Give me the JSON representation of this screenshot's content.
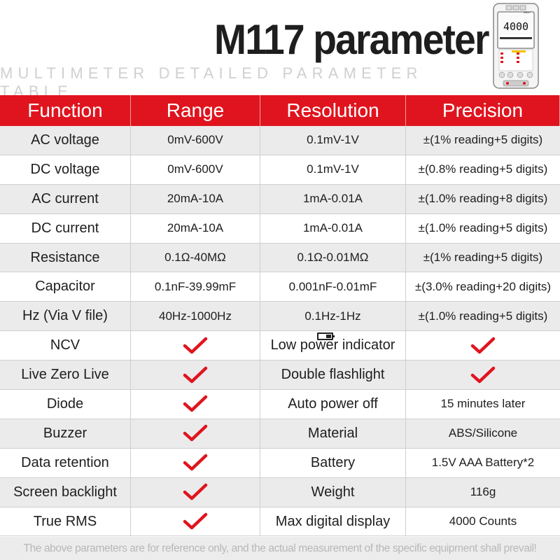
{
  "title": "M117 parameter",
  "subtitle": "MULTIMETER DETAILED PARAMETER TABLE",
  "device_image": {
    "display": "4000",
    "model": "M117"
  },
  "colors": {
    "accent": "#e0141e",
    "stripe": "#ebebeb"
  },
  "headers": [
    "Function",
    "Range",
    "Resolution",
    "Precision"
  ],
  "rows": [
    {
      "function": "AC voltage",
      "range": "0mV-600V",
      "resolution": "0.1mV-1V",
      "precision": "±(1% reading+5 digits)"
    },
    {
      "function": "DC voltage",
      "range": "0mV-600V",
      "resolution": "0.1mV-1V",
      "precision": "±(0.8% reading+5 digits)"
    },
    {
      "function": "AC current",
      "range": "20mA-10A",
      "resolution": "1mA-0.01A",
      "precision": "±(1.0% reading+8 digits)"
    },
    {
      "function": "DC current",
      "range": "20mA-10A",
      "resolution": "1mA-0.01A",
      "precision": "±(1.0% reading+5 digits)"
    },
    {
      "function": "Resistance",
      "range": "0.1Ω-40MΩ",
      "resolution": "0.1Ω-0.01MΩ",
      "precision": "±(1% reading+5 digits)"
    },
    {
      "function": "Capacitor",
      "range": "0.1nF-39.99mF",
      "resolution": "0.001nF-0.01mF",
      "precision": "±(3.0% reading+20 digits)"
    },
    {
      "function": "Hz (Via V file)",
      "range": "40Hz-1000Hz",
      "resolution": "0.1Hz-1Hz",
      "precision": "±(1.0% reading+5 digits)"
    }
  ],
  "features": [
    {
      "function": "NCV",
      "supported": true,
      "label": "Low power indicator",
      "value_check": true,
      "icon": "battery-low-icon"
    },
    {
      "function": "Live Zero Live",
      "supported": true,
      "label": "Double flashlight",
      "value_check": true
    },
    {
      "function": "Diode",
      "supported": true,
      "label": "Auto power off",
      "value": "15 minutes later"
    },
    {
      "function": "Buzzer",
      "supported": true,
      "label": "Material",
      "value": "ABS/Silicone"
    },
    {
      "function": "Data retention",
      "supported": true,
      "label": "Battery",
      "value": "1.5V AAA Battery*2"
    },
    {
      "function": "Screen backlight",
      "supported": true,
      "label": "Weight",
      "value": "116g"
    },
    {
      "function": "True RMS",
      "supported": true,
      "label": "Max digital display",
      "value": "4000 Counts"
    }
  ],
  "footer": "The above parameters are for reference only, and the actual measurement of the specific equipment shall prevail!"
}
